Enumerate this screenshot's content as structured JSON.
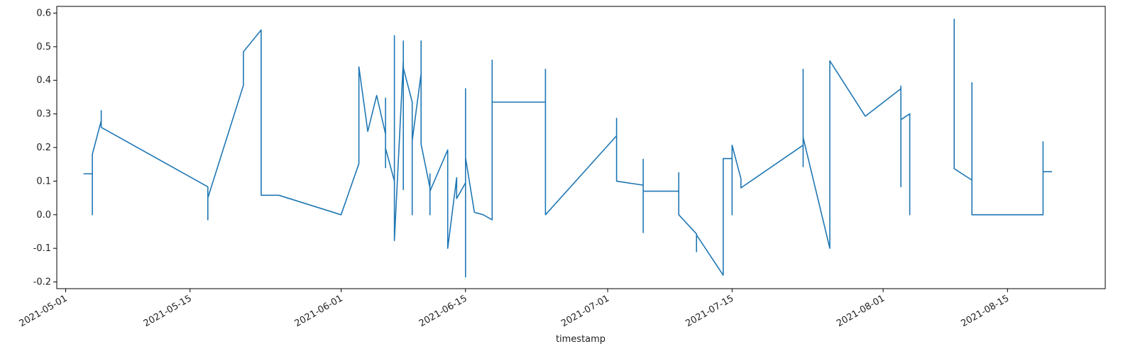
{
  "chart_data": {
    "type": "line",
    "x_label": "timestamp",
    "x": [
      "2021-05-03",
      "2021-05-04",
      "2021-05-04",
      "2021-05-04",
      "2021-05-05",
      "2021-05-05",
      "2021-05-05",
      "2021-05-17",
      "2021-05-17",
      "2021-05-17",
      "2021-05-21",
      "2021-05-21",
      "2021-05-23",
      "2021-05-23",
      "2021-05-23",
      "2021-05-25",
      "2021-06-01",
      "2021-06-03",
      "2021-06-03",
      "2021-06-03",
      "2021-06-04",
      "2021-06-05",
      "2021-06-06",
      "2021-06-06",
      "2021-06-06",
      "2021-06-06",
      "2021-06-07",
      "2021-06-07",
      "2021-06-07",
      "2021-06-07",
      "2021-06-07",
      "2021-06-08",
      "2021-06-08",
      "2021-06-08",
      "2021-06-08",
      "2021-06-08",
      "2021-06-09",
      "2021-06-09",
      "2021-06-09",
      "2021-06-10",
      "2021-06-10",
      "2021-06-10",
      "2021-06-10",
      "2021-06-11",
      "2021-06-11",
      "2021-06-11",
      "2021-06-11",
      "2021-06-13",
      "2021-06-13",
      "2021-06-14",
      "2021-06-14",
      "2021-06-15",
      "2021-06-15",
      "2021-06-15",
      "2021-06-15",
      "2021-06-15",
      "2021-06-15",
      "2021-06-16",
      "2021-06-17",
      "2021-06-18",
      "2021-06-18",
      "2021-06-18",
      "2021-06-18",
      "2021-06-24",
      "2021-06-24",
      "2021-06-24",
      "2021-06-24",
      "2021-07-02",
      "2021-07-02",
      "2021-07-02",
      "2021-07-05",
      "2021-07-05",
      "2021-07-05",
      "2021-07-05",
      "2021-07-05",
      "2021-07-05",
      "2021-07-09",
      "2021-07-09",
      "2021-07-09",
      "2021-07-11",
      "2021-07-11",
      "2021-07-11",
      "2021-07-14",
      "2021-07-14",
      "2021-07-15",
      "2021-07-15",
      "2021-07-15",
      "2021-07-16",
      "2021-07-16",
      "2021-07-23",
      "2021-07-23",
      "2021-07-23",
      "2021-07-23",
      "2021-07-26",
      "2021-07-26",
      "2021-07-26",
      "2021-07-26",
      "2021-07-26",
      "2021-07-30",
      "2021-08-03",
      "2021-08-03",
      "2021-08-03",
      "2021-08-03",
      "2021-08-03",
      "2021-08-03",
      "2021-08-04",
      "2021-08-04",
      "2021-08-04",
      "2021-08-04",
      "2021-08-04",
      "2021-08-07",
      "2021-08-09",
      "2021-08-09",
      "2021-08-09",
      "2021-08-11",
      "2021-08-11",
      "2021-08-11",
      "2021-08-11",
      "2021-08-19",
      "2021-08-19",
      "2021-08-19",
      "2021-08-20"
    ],
    "series": [
      {
        "color": "#1f77b4",
        "values": [
          0.122,
          0.122,
          0,
          0.18,
          0.28,
          0.31,
          0.26,
          0.083,
          -0.015,
          0.05,
          0.385,
          0.485,
          0.55,
          0.135,
          0.058,
          0.058,
          0,
          0.152,
          0.255,
          0.44,
          0.248,
          0.355,
          0.24,
          0.347,
          0.14,
          0.198,
          0.1,
          0.1,
          0,
          0.533,
          -0.077,
          0.46,
          0.517,
          0.17,
          0.075,
          0.437,
          0.335,
          0,
          0.22,
          0.42,
          0.375,
          0.517,
          0.21,
          0.08,
          0.122,
          0,
          0.07,
          0.193,
          -0.1,
          0.11,
          0.048,
          0.095,
          -0.165,
          0.375,
          -0.185,
          0.208,
          0.17,
          0.007,
          0,
          -0.015,
          0.46,
          0.25,
          0.335,
          0.335,
          0.433,
          0.1,
          0,
          0.235,
          0.287,
          0.1,
          0.088,
          -0.053,
          0.165,
          -0.03,
          0.127,
          0.07,
          0.07,
          0.125,
          0,
          -0.057,
          -0.11,
          -0.06,
          -0.18,
          0.167,
          0.167,
          0,
          0.207,
          0.107,
          0.08,
          0.207,
          0.143,
          0.433,
          0.23,
          -0.1,
          0,
          0.293,
          0.11,
          0.458,
          0.293,
          0.375,
          0.083,
          0.333,
          0.3,
          0.383,
          0.283,
          0.3,
          0,
          0.067,
          0.167,
          0.197,
          null,
          0.583,
          0.54,
          0.137,
          0.103,
          0.393,
          0.3,
          0,
          0,
          0.217,
          0.128,
          0.128
        ]
      }
    ],
    "xlim": [
      "2021-04-30",
      "2021-08-26"
    ],
    "xticks": [
      "2021-05-01",
      "2021-05-15",
      "2021-06-01",
      "2021-06-15",
      "2021-07-01",
      "2021-07-15",
      "2021-08-01",
      "2021-08-15"
    ],
    "ylim": [
      -0.22,
      0.62
    ],
    "yticks": [
      -0.2,
      -0.1,
      0.0,
      0.1,
      0.2,
      0.3,
      0.4,
      0.5,
      0.6
    ]
  }
}
